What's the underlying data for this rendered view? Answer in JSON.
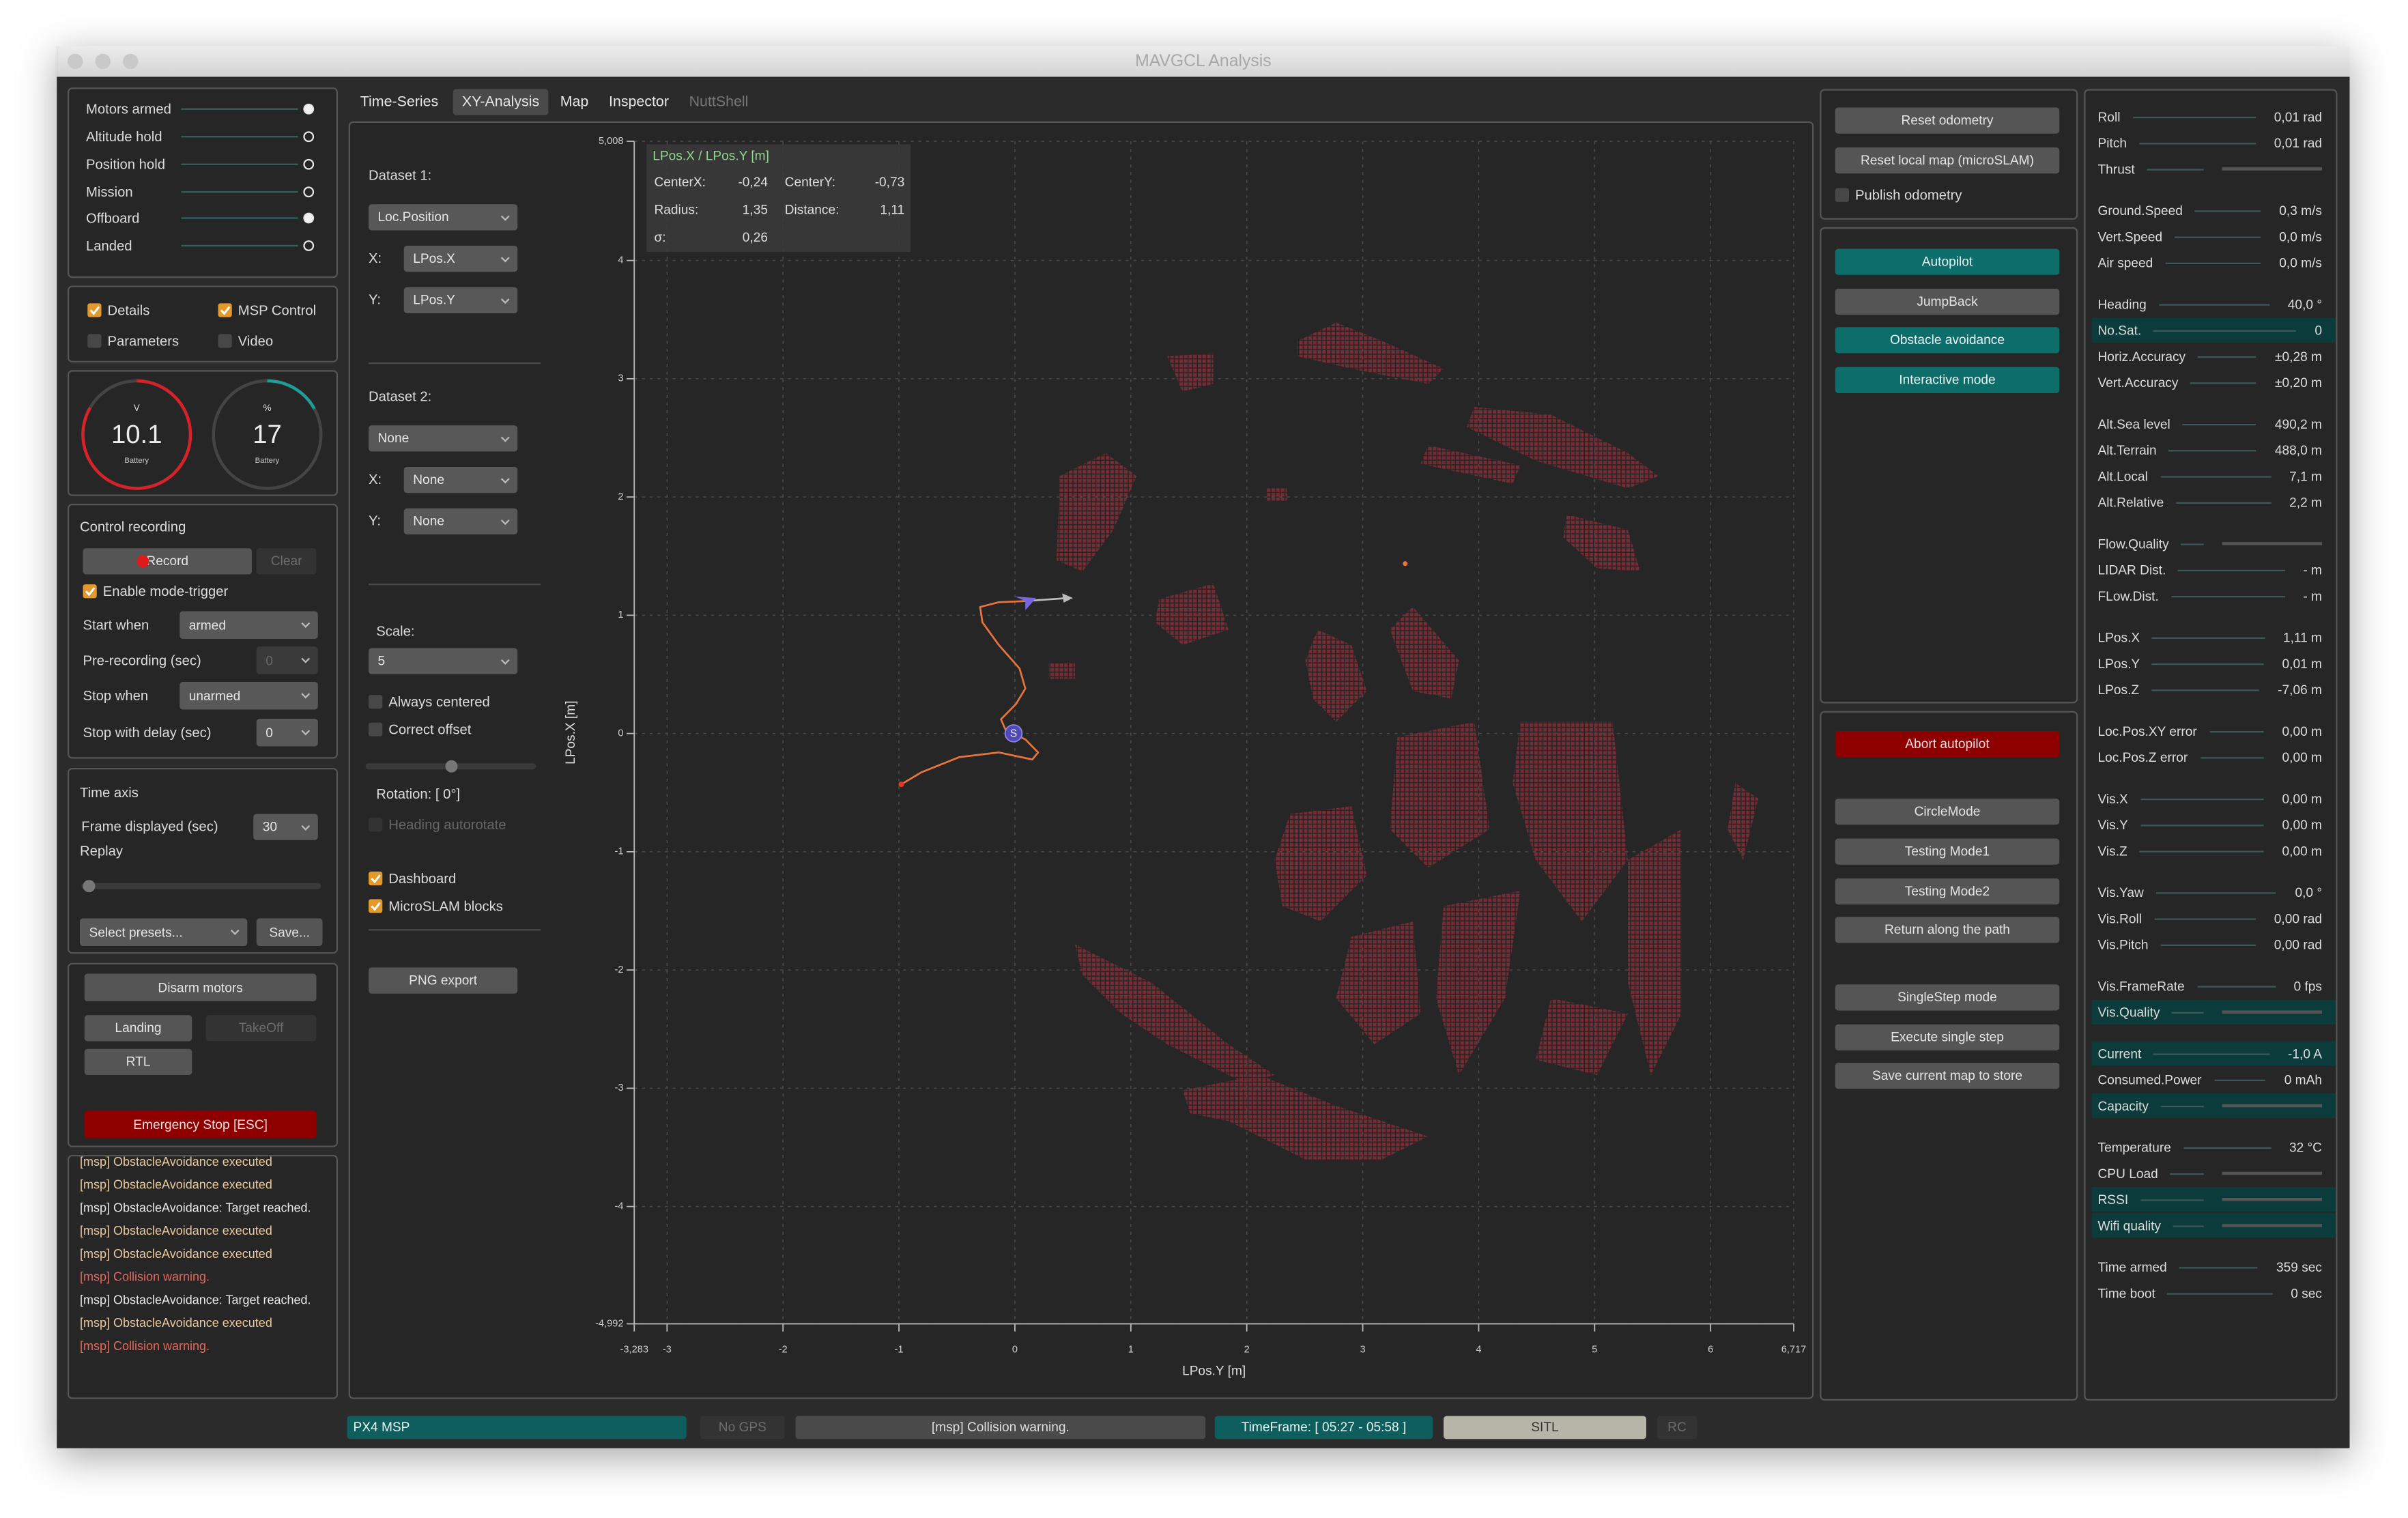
{
  "window": {
    "title": "MAVGCL Analysis"
  },
  "left": {
    "status": [
      {
        "label": "Motors armed",
        "on": true
      },
      {
        "label": "Altitude hold",
        "on": false
      },
      {
        "label": "Position hold",
        "on": false
      },
      {
        "label": "Mission",
        "on": false
      },
      {
        "label": "Offboard",
        "on": true
      },
      {
        "label": "Landed",
        "on": false
      }
    ],
    "checks": [
      {
        "label": "Details",
        "checked": true
      },
      {
        "label": "MSP Control",
        "checked": true
      },
      {
        "label": "Parameters",
        "checked": false
      },
      {
        "label": "Video",
        "checked": false
      }
    ],
    "gauges": [
      {
        "unit": "V",
        "value": 10.1,
        "label": "Battery"
      },
      {
        "unit": "%",
        "value": 17,
        "label": "Battery"
      }
    ],
    "recording": {
      "title": "Control recording",
      "record": "Record",
      "clear": "Clear",
      "enable_trigger": "Enable mode-trigger",
      "enable_trigger_checked": true,
      "rows": [
        {
          "label": "Start when",
          "value": "armed",
          "enabled": true
        },
        {
          "label": "Pre-recording (sec)",
          "value": "0",
          "enabled": false
        },
        {
          "label": "Stop when",
          "value": "unarmed",
          "enabled": true
        },
        {
          "label": "Stop with delay (sec)",
          "value": "0",
          "enabled": true
        }
      ]
    },
    "time_axis": {
      "title": "Time axis",
      "frame_label": "Frame displayed (sec)",
      "frame_value": "30",
      "replay": "Replay",
      "presets": "Select presets...",
      "save": "Save..."
    },
    "commands": {
      "disarm": "Disarm motors",
      "landing": "Landing",
      "takeoff": "TakeOff",
      "rtl": "RTL",
      "emergency": "Emergency Stop [ESC]"
    },
    "log": [
      {
        "text": "[msp] ObstacleAvoidance executed",
        "level": "info"
      },
      {
        "text": "[msp] ObstacleAvoidance executed",
        "level": "info"
      },
      {
        "text": "[msp] ObstacleAvoidance: Target reached.",
        "level": "plain"
      },
      {
        "text": "[msp] ObstacleAvoidance executed",
        "level": "info"
      },
      {
        "text": "[msp] ObstacleAvoidance executed",
        "level": "info"
      },
      {
        "text": "[msp] Collision warning.",
        "level": "warning"
      },
      {
        "text": "[msp] ObstacleAvoidance: Target reached.",
        "level": "plain"
      },
      {
        "text": "[msp] ObstacleAvoidance executed",
        "level": "info"
      },
      {
        "text": "[msp] Collision warning.",
        "level": "warning"
      }
    ]
  },
  "tabs": {
    "items": [
      "Time-Series",
      "XY-Analysis",
      "Map",
      "Inspector",
      "NuttShell"
    ],
    "active": "XY-Analysis",
    "disabled": "NuttShell"
  },
  "xy": {
    "dataset1": {
      "title": "Dataset 1:",
      "source": "Loc.Position",
      "x_label": "X:",
      "x": "LPos.X",
      "y_label": "Y:",
      "y": "LPos.Y"
    },
    "dataset2": {
      "title": "Dataset 2:",
      "source": "None",
      "x_label": "X:",
      "x": "None",
      "y_label": "Y:",
      "y": "None"
    },
    "scale_label": "Scale:",
    "scale": "5",
    "options": [
      {
        "label": "Always centered",
        "checked": false
      },
      {
        "label": "Correct offset",
        "checked": false
      }
    ],
    "rotation": "Rotation: [ 0°]",
    "heading_autorotate": {
      "label": "Heading autorotate",
      "checked": false
    },
    "layers": [
      {
        "label": "Dashboard",
        "checked": true
      },
      {
        "label": "MicroSLAM blocks",
        "checked": true
      }
    ],
    "export": "PNG export"
  },
  "chart_data": {
    "type": "line",
    "title": "LPos.X / LPos.Y [m]",
    "xlabel": "LPos.Y [m]",
    "ylabel": "LPos.X [m]",
    "start_label": "S",
    "stats": [
      {
        "label": "CenterX:",
        "value": "-0,24"
      },
      {
        "label": "CenterY:",
        "value": "-0,73"
      },
      {
        "label": "Radius:",
        "value": "1,35"
      },
      {
        "label": "Distance:",
        "value": "1,11"
      },
      {
        "label": "σ:",
        "value": "0,26"
      }
    ],
    "x": [
      -0.98,
      -0.81,
      -0.48,
      -0.14,
      0.15,
      0.2,
      0.09,
      -0.08,
      -0.12,
      0.01,
      0.09,
      0.04,
      -0.14,
      -0.28,
      -0.3,
      -0.14,
      0.09
    ],
    "values": [
      -0.43,
      -0.33,
      -0.2,
      -0.16,
      -0.22,
      -0.16,
      -0.05,
      0.03,
      0.12,
      0.25,
      0.38,
      0.55,
      0.75,
      0.94,
      1.07,
      1.11,
      1.12
    ],
    "color": "#e8743b",
    "xlim": [
      -3.283,
      6.717
    ],
    "ylim": [
      -4.992,
      5.008
    ],
    "xticks": [
      {
        "value": -3.283,
        "label": "-3,283"
      },
      -3,
      -2,
      -1,
      0,
      1,
      2,
      3,
      4,
      5,
      6,
      {
        "value": 6.717,
        "label": "6,717"
      }
    ],
    "yticks": [
      {
        "value": -4.992,
        "label": "-4,992"
      },
      -4,
      -3,
      -2,
      -1,
      0,
      1,
      2,
      3,
      4,
      {
        "value": 5.008,
        "label": "5,008"
      }
    ],
    "grid": true
  },
  "control": {
    "top": [
      {
        "label": "Reset odometry",
        "style": "gray"
      },
      {
        "label": "Reset local map (microSLAM)",
        "style": "gray"
      }
    ],
    "publish": {
      "label": "Publish odometry",
      "checked": false
    },
    "modes": [
      {
        "label": "Autopilot",
        "style": "teal"
      },
      {
        "label": "JumpBack",
        "style": "gray"
      },
      {
        "label": "Obstacle avoidance",
        "style": "teal"
      },
      {
        "label": "Interactive mode",
        "style": "teal"
      }
    ],
    "actions": [
      {
        "label": "Abort autopilot",
        "style": "red"
      },
      {
        "label": "CircleMode",
        "style": "gray"
      },
      {
        "label": "Testing Mode1",
        "style": "gray"
      },
      {
        "label": "Testing Mode2",
        "style": "gray"
      },
      {
        "label": "Return along the path",
        "style": "gray"
      },
      {
        "label": "SingleStep mode",
        "style": "gray"
      },
      {
        "label": "Execute single step",
        "style": "gray"
      },
      {
        "label": "Save current map to store",
        "style": "gray"
      }
    ]
  },
  "telemetry": [
    [
      {
        "label": "Roll",
        "value": "0,01 rad"
      },
      {
        "label": "Pitch",
        "value": "0,01 rad"
      },
      {
        "label": "Thrust",
        "bar": true,
        "level": 0.5
      }
    ],
    [
      {
        "label": "Ground.Speed",
        "value": "0,3 m/s"
      },
      {
        "label": "Vert.Speed",
        "value": "0,0 m/s"
      },
      {
        "label": "Air speed",
        "value": "0,0 m/s"
      }
    ],
    [
      {
        "label": "Heading",
        "value": "40,0 °"
      },
      {
        "label": "No.Sat.",
        "value": "0",
        "highlight": true
      },
      {
        "label": "Horiz.Accuracy",
        "value": "±0,28 m"
      },
      {
        "label": "Vert.Accuracy",
        "value": "±0,20 m"
      }
    ],
    [
      {
        "label": "Alt.Sea level",
        "value": "490,2 m"
      },
      {
        "label": "Alt.Terrain",
        "value": "488,0 m"
      },
      {
        "label": "Alt.Local",
        "value": "7,1 m"
      },
      {
        "label": "Alt.Relative",
        "value": "2,2 m"
      }
    ],
    [
      {
        "label": "Flow.Quality",
        "bar": true,
        "level": 0
      },
      {
        "label": "LIDAR Dist.",
        "value": "- m"
      },
      {
        "label": "FLow.Dist.",
        "value": "- m"
      }
    ],
    [
      {
        "label": "LPos.X",
        "value": "1,11 m"
      },
      {
        "label": "LPos.Y",
        "value": "0,01 m"
      },
      {
        "label": "LPos.Z",
        "value": "-7,06 m"
      }
    ],
    [
      {
        "label": "Loc.Pos.XY error",
        "value": "0,00 m"
      },
      {
        "label": "Loc.Pos.Z error",
        "value": "0,00 m"
      }
    ],
    [
      {
        "label": "Vis.X",
        "value": "0,00 m"
      },
      {
        "label": "Vis.Y",
        "value": "0,00 m"
      },
      {
        "label": "Vis.Z",
        "value": "0,00 m"
      }
    ],
    [
      {
        "label": "Vis.Yaw",
        "value": "0,0 °"
      },
      {
        "label": "Vis.Roll",
        "value": "0,00 rad"
      },
      {
        "label": "Vis.Pitch",
        "value": "0,00 rad"
      }
    ],
    [
      {
        "label": "Vis.FrameRate",
        "value": "0 fps"
      },
      {
        "label": "Vis.Quality",
        "bar": true,
        "level": 0,
        "highlight": true
      }
    ],
    [
      {
        "label": "Current",
        "value": "-1,0 A",
        "highlight": true
      },
      {
        "label": "Consumed.Power",
        "value": "0 mAh"
      },
      {
        "label": "Capacity",
        "bar": true,
        "level": 0.15,
        "highlight": true
      }
    ],
    [
      {
        "label": "Temperature",
        "value": "32 °C"
      },
      {
        "label": "CPU Load",
        "bar": true,
        "level": 0
      },
      {
        "label": "RSSI",
        "bar": true,
        "level": 0,
        "highlight": true
      },
      {
        "label": "Wifi quality",
        "bar": true,
        "level": 0,
        "highlight": true
      }
    ],
    [
      {
        "label": "Time armed",
        "value": "359 sec"
      },
      {
        "label": "Time boot",
        "value": "0 sec"
      }
    ]
  ],
  "statusbar": [
    {
      "text": "PX4 MSP",
      "style": "teal"
    },
    {
      "text": "No GPS",
      "style": "dim"
    },
    {
      "text": "[msp] Collision warning.",
      "style": "gray"
    },
    {
      "text": "TimeFrame: [ 05:27 - 05:58 ]",
      "style": "teal"
    },
    {
      "text": "SITL",
      "style": "light"
    },
    {
      "text": "RC",
      "style": "dim"
    }
  ]
}
